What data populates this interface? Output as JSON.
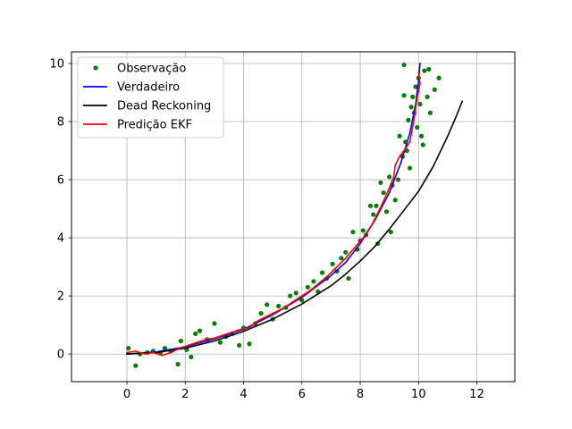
{
  "chart_data": {
    "type": "line",
    "title": "",
    "xlabel": "",
    "ylabel": "",
    "xlim": [
      -1.9,
      13.3
    ],
    "ylim": [
      -0.95,
      10.4
    ],
    "xticks": [
      0,
      2,
      4,
      6,
      8,
      10,
      12
    ],
    "yticks": [
      0,
      2,
      4,
      6,
      8,
      10
    ],
    "xtick_labels": [
      "0",
      "2",
      "4",
      "6",
      "8",
      "10",
      "12"
    ],
    "ytick_labels": [
      "0",
      "2",
      "4",
      "6",
      "8",
      "10"
    ],
    "grid": true,
    "legend_position": "upper-left",
    "series": [
      {
        "name": "Observação",
        "kind": "scatter",
        "color": "#008000",
        "points": [
          [
            0.05,
            0.2
          ],
          [
            0.3,
            -0.4
          ],
          [
            0.45,
            0.0
          ],
          [
            0.7,
            0.05
          ],
          [
            0.9,
            0.1
          ],
          [
            1.15,
            0.05
          ],
          [
            1.3,
            0.2
          ],
          [
            1.5,
            0.1
          ],
          [
            1.75,
            -0.35
          ],
          [
            1.85,
            0.45
          ],
          [
            2.05,
            0.15
          ],
          [
            2.2,
            -0.1
          ],
          [
            2.35,
            0.7
          ],
          [
            2.5,
            0.8
          ],
          [
            2.75,
            0.5
          ],
          [
            3.0,
            1.05
          ],
          [
            3.2,
            0.4
          ],
          [
            3.4,
            0.6
          ],
          [
            3.6,
            0.7
          ],
          [
            3.85,
            0.3
          ],
          [
            4.0,
            0.9
          ],
          [
            4.2,
            0.35
          ],
          [
            4.4,
            1.05
          ],
          [
            4.6,
            1.4
          ],
          [
            4.8,
            1.7
          ],
          [
            5.0,
            1.2
          ],
          [
            5.2,
            1.65
          ],
          [
            5.45,
            1.6
          ],
          [
            5.6,
            2.0
          ],
          [
            5.8,
            2.1
          ],
          [
            6.0,
            1.85
          ],
          [
            6.2,
            2.3
          ],
          [
            6.4,
            2.5
          ],
          [
            6.55,
            2.15
          ],
          [
            6.7,
            2.8
          ],
          [
            6.85,
            2.6
          ],
          [
            7.05,
            3.1
          ],
          [
            7.2,
            2.85
          ],
          [
            7.35,
            3.3
          ],
          [
            7.5,
            3.5
          ],
          [
            7.6,
            2.6
          ],
          [
            7.75,
            4.2
          ],
          [
            7.9,
            3.6
          ],
          [
            8.0,
            3.9
          ],
          [
            8.1,
            4.25
          ],
          [
            8.2,
            4.1
          ],
          [
            8.35,
            5.1
          ],
          [
            8.45,
            4.8
          ],
          [
            8.55,
            5.1
          ],
          [
            8.6,
            3.8
          ],
          [
            8.7,
            5.9
          ],
          [
            8.8,
            5.55
          ],
          [
            8.9,
            4.9
          ],
          [
            9.0,
            6.1
          ],
          [
            9.05,
            4.2
          ],
          [
            9.1,
            5.8
          ],
          [
            9.2,
            5.3
          ],
          [
            9.3,
            6.0
          ],
          [
            9.35,
            7.5
          ],
          [
            9.45,
            6.8
          ],
          [
            9.5,
            8.9
          ],
          [
            9.55,
            7.3
          ],
          [
            9.6,
            7.0
          ],
          [
            9.65,
            8.05
          ],
          [
            9.7,
            6.4
          ],
          [
            9.75,
            8.5
          ],
          [
            9.8,
            8.85
          ],
          [
            9.85,
            8.3
          ],
          [
            9.9,
            9.2
          ],
          [
            9.95,
            7.8
          ],
          [
            10.0,
            9.5
          ],
          [
            10.05,
            8.6
          ],
          [
            10.1,
            7.5
          ],
          [
            10.15,
            7.2
          ],
          [
            10.2,
            9.75
          ],
          [
            10.3,
            8.85
          ],
          [
            10.4,
            8.3
          ],
          [
            10.55,
            9.1
          ],
          [
            10.7,
            9.5
          ],
          [
            9.5,
            9.95
          ],
          [
            10.35,
            9.8
          ]
        ]
      },
      {
        "name": "Verdadeiro",
        "kind": "line",
        "color": "#0000ff",
        "points": [
          [
            0,
            0
          ],
          [
            1,
            0.07
          ],
          [
            2,
            0.25
          ],
          [
            3,
            0.52
          ],
          [
            4,
            0.85
          ],
          [
            5,
            1.35
          ],
          [
            6,
            1.95
          ],
          [
            7,
            2.7
          ],
          [
            7.5,
            3.15
          ],
          [
            8,
            3.8
          ],
          [
            8.5,
            4.6
          ],
          [
            9,
            5.55
          ],
          [
            9.4,
            6.6
          ],
          [
            9.7,
            7.6
          ],
          [
            9.9,
            8.6
          ],
          [
            10.0,
            9.4
          ],
          [
            10.05,
            10.0
          ]
        ]
      },
      {
        "name": "Dead Reckoning",
        "kind": "line",
        "color": "#000000",
        "points": [
          [
            0,
            0
          ],
          [
            1,
            0.05
          ],
          [
            2,
            0.2
          ],
          [
            3,
            0.45
          ],
          [
            4,
            0.78
          ],
          [
            5,
            1.2
          ],
          [
            6,
            1.72
          ],
          [
            7,
            2.35
          ],
          [
            7.5,
            2.75
          ],
          [
            8,
            3.2
          ],
          [
            8.5,
            3.7
          ],
          [
            9,
            4.3
          ],
          [
            9.5,
            4.95
          ],
          [
            10,
            5.6
          ],
          [
            10.5,
            6.45
          ],
          [
            11.0,
            7.5
          ],
          [
            11.3,
            8.2
          ],
          [
            11.5,
            8.7
          ]
        ]
      },
      {
        "name": "Predição EKF",
        "kind": "line",
        "color": "#ff0000",
        "points": [
          [
            0,
            0.05
          ],
          [
            0.3,
            0.1
          ],
          [
            0.6,
            0.0
          ],
          [
            0.9,
            0.05
          ],
          [
            1.2,
            -0.05
          ],
          [
            1.5,
            0.05
          ],
          [
            1.8,
            0.2
          ],
          [
            2.1,
            0.3
          ],
          [
            2.4,
            0.4
          ],
          [
            2.7,
            0.5
          ],
          [
            3.0,
            0.55
          ],
          [
            3.3,
            0.65
          ],
          [
            3.6,
            0.75
          ],
          [
            3.9,
            0.85
          ],
          [
            4.2,
            0.9
          ],
          [
            4.5,
            1.15
          ],
          [
            4.8,
            1.3
          ],
          [
            5.1,
            1.45
          ],
          [
            5.4,
            1.6
          ],
          [
            5.7,
            1.8
          ],
          [
            6.0,
            2.0
          ],
          [
            6.3,
            2.2
          ],
          [
            6.6,
            2.45
          ],
          [
            6.9,
            2.7
          ],
          [
            7.2,
            3.0
          ],
          [
            7.5,
            3.3
          ],
          [
            7.8,
            3.65
          ],
          [
            8.1,
            4.0
          ],
          [
            8.4,
            4.45
          ],
          [
            8.7,
            5.05
          ],
          [
            8.95,
            5.6
          ],
          [
            9.15,
            6.1
          ],
          [
            9.2,
            6.5
          ],
          [
            9.35,
            6.8
          ],
          [
            9.5,
            7.0
          ],
          [
            9.7,
            7.3
          ],
          [
            9.85,
            8.1
          ],
          [
            9.95,
            8.8
          ],
          [
            10.05,
            9.3
          ],
          [
            10.0,
            9.7
          ]
        ]
      }
    ]
  }
}
